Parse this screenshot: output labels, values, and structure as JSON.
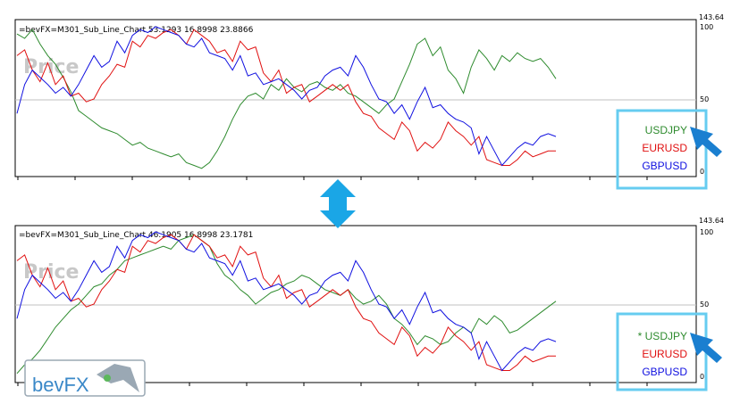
{
  "colors": {
    "usdjpy": "#2e8b2e",
    "eurusd": "#e01010",
    "gbpusd": "#1010e0",
    "highlight": "#66ccf0",
    "arrow": "#1a7fd0",
    "midline": "#c0c0c0"
  },
  "logo": {
    "text": "bevFX"
  },
  "chart_data": [
    {
      "type": "line",
      "title": "=bevFX=M301_Sub_Line_Chart 53.1293 16.8998 23.8866",
      "watermark": "Price",
      "y_top_tick": "143.64",
      "ylim": [
        0,
        100
      ],
      "yticks": [
        {
          "v": 100,
          "label": "100"
        },
        {
          "v": 50,
          "label": "50"
        },
        {
          "v": 0,
          "label": "0"
        }
      ],
      "legend": [
        {
          "text": "USDJPY",
          "color": "#2e8b2e"
        },
        {
          "text": "EURUSD",
          "color": "#e01010"
        },
        {
          "text": "GBPUSD",
          "color": "#1010e0"
        }
      ],
      "series": [
        {
          "name": "USDJPY",
          "color": "#2e8b2e",
          "values": [
            95,
            92,
            98,
            88,
            80,
            74,
            65,
            55,
            42,
            38,
            34,
            30,
            28,
            26,
            22,
            18,
            20,
            16,
            14,
            12,
            10,
            12,
            6,
            4,
            2,
            6,
            14,
            24,
            36,
            46,
            52,
            54,
            50,
            60,
            56,
            64,
            58,
            55,
            60,
            62,
            58,
            56,
            60,
            54,
            52,
            48,
            44,
            40,
            46,
            50,
            62,
            74,
            88,
            92,
            80,
            86,
            70,
            64,
            54,
            72,
            84,
            78,
            70,
            80,
            76,
            82,
            78,
            76,
            78,
            72,
            64
          ]
        },
        {
          "name": "EURUSD",
          "color": "#e01010",
          "values": [
            80,
            84,
            70,
            62,
            75,
            60,
            66,
            52,
            54,
            48,
            50,
            60,
            66,
            74,
            72,
            90,
            86,
            94,
            92,
            96,
            98,
            94,
            88,
            98,
            94,
            90,
            82,
            84,
            76,
            90,
            84,
            86,
            68,
            62,
            70,
            54,
            58,
            60,
            48,
            52,
            56,
            60,
            56,
            60,
            48,
            40,
            38,
            30,
            26,
            22,
            34,
            28,
            14,
            20,
            16,
            22,
            34,
            28,
            24,
            18,
            24,
            8,
            6,
            4,
            4,
            8,
            14,
            10,
            12,
            14,
            14
          ]
        },
        {
          "name": "GBPUSD",
          "color": "#1010e0",
          "values": [
            40,
            60,
            70,
            65,
            60,
            54,
            58,
            52,
            60,
            70,
            80,
            72,
            76,
            90,
            82,
            94,
            98,
            96,
            100,
            98,
            96,
            94,
            88,
            86,
            92,
            82,
            80,
            78,
            70,
            80,
            66,
            68,
            60,
            62,
            64,
            60,
            56,
            50,
            56,
            58,
            66,
            70,
            72,
            66,
            80,
            72,
            60,
            50,
            48,
            40,
            46,
            36,
            48,
            58,
            44,
            46,
            40,
            36,
            34,
            30,
            12,
            24,
            14,
            4,
            10,
            16,
            20,
            18,
            24,
            26,
            24
          ]
        }
      ]
    },
    {
      "type": "line",
      "title": "=bevFX=M301_Sub_Line_Chart 46.1905 16.8998 23.1781",
      "watermark": "Price",
      "y_top_tick": "143.64",
      "ylim": [
        0,
        100
      ],
      "yticks": [
        {
          "v": 100,
          "label": "100"
        },
        {
          "v": 50,
          "label": "50"
        },
        {
          "v": 0,
          "label": "0"
        }
      ],
      "legend": [
        {
          "text": "* USDJPY",
          "color": "#2e8b2e"
        },
        {
          "text": "EURUSD",
          "color": "#e01010"
        },
        {
          "text": "GBPUSD",
          "color": "#1010e0"
        }
      ],
      "series": [
        {
          "name": "USDJPY",
          "color": "#2e8b2e",
          "values": [
            2,
            8,
            12,
            18,
            26,
            34,
            40,
            46,
            50,
            56,
            62,
            64,
            70,
            74,
            80,
            82,
            84,
            86,
            88,
            90,
            88,
            94,
            96,
            98,
            94,
            90,
            78,
            70,
            66,
            60,
            56,
            50,
            54,
            58,
            60,
            64,
            66,
            70,
            68,
            64,
            60,
            58,
            56,
            60,
            54,
            50,
            52,
            56,
            50,
            40,
            36,
            30,
            22,
            28,
            26,
            22,
            24,
            30,
            34,
            30,
            40,
            36,
            42,
            38,
            30,
            32,
            36,
            40,
            44,
            48,
            52
          ]
        },
        {
          "name": "EURUSD",
          "color": "#e01010",
          "values": [
            80,
            84,
            70,
            62,
            75,
            60,
            66,
            52,
            54,
            48,
            50,
            60,
            66,
            74,
            72,
            90,
            86,
            94,
            92,
            96,
            98,
            94,
            88,
            98,
            94,
            90,
            82,
            84,
            76,
            90,
            84,
            86,
            68,
            62,
            70,
            54,
            58,
            60,
            48,
            52,
            56,
            60,
            56,
            60,
            48,
            40,
            38,
            30,
            26,
            22,
            34,
            28,
            14,
            20,
            16,
            22,
            34,
            28,
            24,
            18,
            24,
            8,
            6,
            4,
            4,
            8,
            14,
            10,
            12,
            14,
            14
          ]
        },
        {
          "name": "GBPUSD",
          "color": "#1010e0",
          "values": [
            40,
            60,
            70,
            65,
            60,
            54,
            58,
            52,
            60,
            70,
            80,
            72,
            76,
            90,
            82,
            94,
            98,
            96,
            100,
            98,
            96,
            94,
            88,
            86,
            92,
            82,
            80,
            78,
            70,
            80,
            66,
            68,
            60,
            62,
            64,
            60,
            56,
            50,
            56,
            58,
            66,
            70,
            72,
            66,
            80,
            72,
            60,
            50,
            48,
            40,
            46,
            36,
            48,
            58,
            44,
            46,
            40,
            36,
            34,
            30,
            12,
            24,
            14,
            4,
            10,
            16,
            20,
            18,
            24,
            26,
            24
          ]
        }
      ]
    }
  ]
}
